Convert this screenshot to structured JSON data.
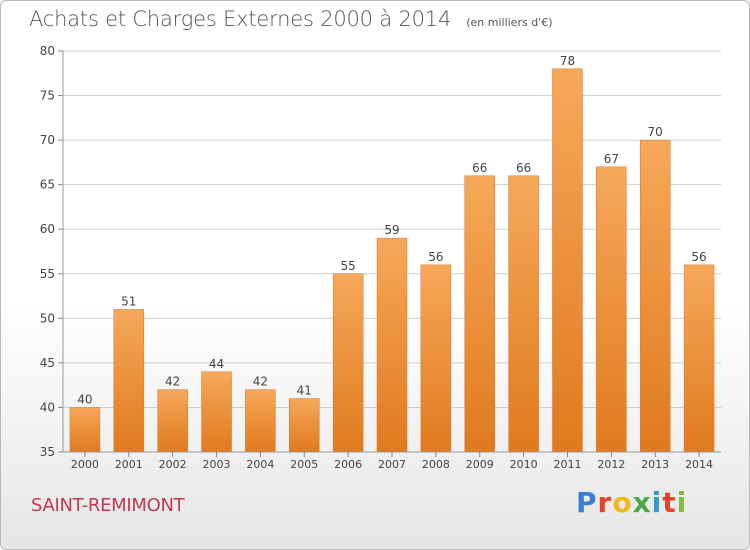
{
  "header": {
    "title": "Achats et Charges Externes 2000 à 2014",
    "subtitle": "(en milliers d'€)"
  },
  "footer": {
    "commune": "SAINT-REMIMONT",
    "brand": "Proxiti",
    "brand_colors": [
      "#3b7fd4",
      "#e8412c",
      "#f3b51c",
      "#4aa84a",
      "#2f9bd6",
      "#e8412c",
      "#7cbf3c"
    ]
  },
  "chart_data": {
    "type": "bar",
    "categories": [
      "2000",
      "2001",
      "2002",
      "2003",
      "2004",
      "2005",
      "2006",
      "2007",
      "2008",
      "2009",
      "2010",
      "2011",
      "2012",
      "2013",
      "2014"
    ],
    "values": [
      40,
      51,
      42,
      44,
      42,
      41,
      55,
      59,
      56,
      66,
      66,
      78,
      67,
      70,
      56
    ],
    "ylim": [
      35,
      80
    ],
    "yticks": [
      35,
      40,
      45,
      50,
      55,
      60,
      65,
      70,
      75,
      80
    ],
    "grid": true,
    "bar_color": "#f29b45",
    "bar_color_dark": "#e07a1f"
  }
}
